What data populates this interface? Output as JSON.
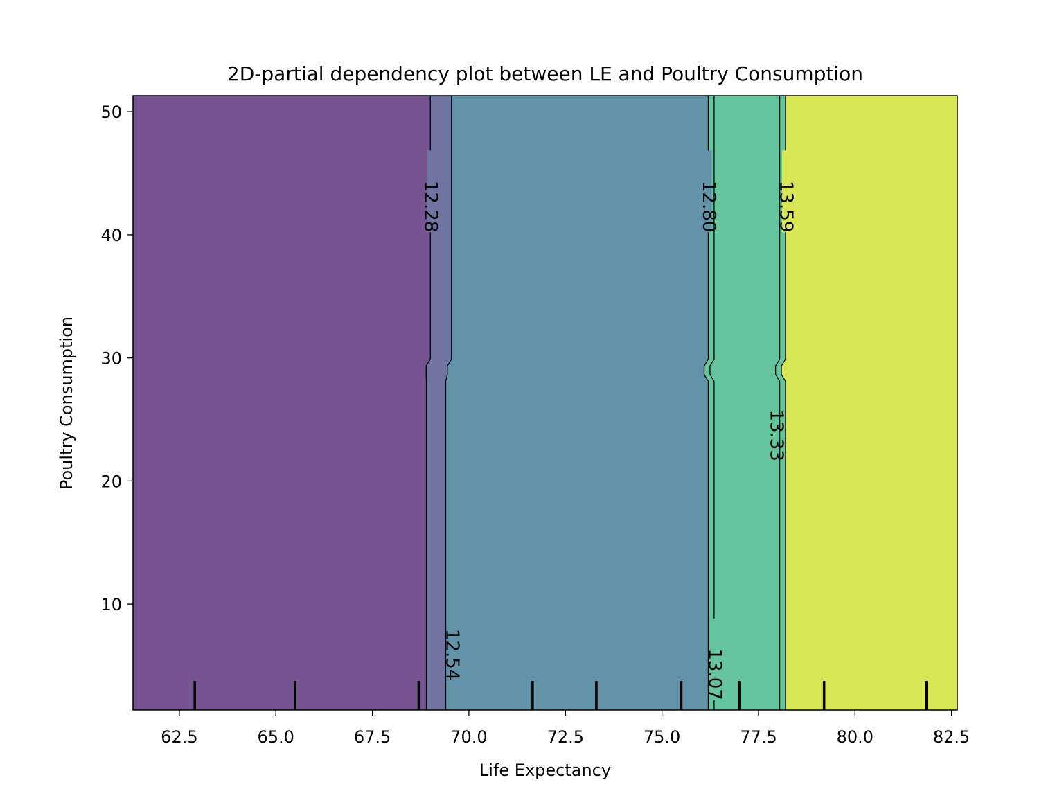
{
  "chart_data": {
    "type": "heatmap",
    "subtype": "2d-partial-dependence-filled-contour",
    "title": "2D-partial dependency plot between LE and Poultry Consumption",
    "xlabel": "Life Expectancy",
    "ylabel": "Poultry Consumption",
    "xlim": [
      61.3,
      82.65
    ],
    "ylim": [
      1.4,
      51.3
    ],
    "x_ticks": [
      62.5,
      65.0,
      67.5,
      70.0,
      72.5,
      75.0,
      77.5,
      80.0,
      82.5
    ],
    "x_tick_labels": [
      "62.5",
      "65.0",
      "67.5",
      "70.0",
      "72.5",
      "75.0",
      "77.5",
      "80.0",
      "82.5"
    ],
    "y_ticks": [
      10,
      20,
      30,
      40,
      50
    ],
    "y_tick_labels": [
      "10",
      "20",
      "30",
      "40",
      "50"
    ],
    "grid": false,
    "contour_levels": [
      {
        "value": 12.28,
        "label": "12.28",
        "x_low": 68.9,
        "x_high": 69.0,
        "label_x": 69.0,
        "label_y": 40.2
      },
      {
        "value": 12.54,
        "label": "12.54",
        "x_low": 69.4,
        "x_high": 69.55,
        "label_x": 69.55,
        "label_y": 3.8
      },
      {
        "value": 12.8,
        "label": "12.80",
        "x_low": 76.2,
        "x_high": 76.2,
        "label_x": 76.2,
        "label_y": 40.2
      },
      {
        "value": 13.07,
        "label": "13.07",
        "x_low": 76.35,
        "x_high": 76.35,
        "label_x": 76.35,
        "label_y": 2.2
      },
      {
        "value": 13.33,
        "label": "13.33",
        "x_low": 78.05,
        "x_high": 78.05,
        "label_x": 77.95,
        "label_y": 21.6
      },
      {
        "value": 13.59,
        "label": "13.59",
        "x_low": 78.2,
        "x_high": 78.2,
        "label_x": 78.2,
        "label_y": 40.2
      }
    ],
    "kink_y": 29.0,
    "band_colors": [
      "#76548f",
      "#6f74a1",
      "#6393a9",
      "#67c59e",
      "#d9e757"
    ],
    "deciles_x": [
      62.9,
      65.5,
      68.7,
      71.65,
      73.3,
      75.5,
      77.0,
      79.2,
      81.85
    ]
  }
}
